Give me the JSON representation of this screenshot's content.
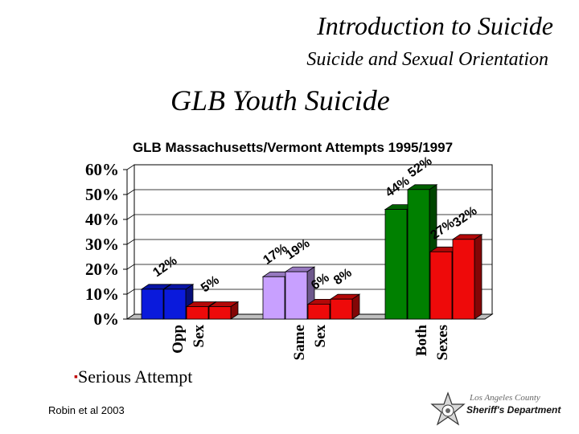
{
  "header": {
    "title": "Introduction to Suicide",
    "subtitle": "Suicide and Sexual Orientation"
  },
  "slide": {
    "title": "GLB Youth Suicide",
    "bullet": "Serious Attempt",
    "citation": "Robin et al 2003"
  },
  "logo": {
    "county": "Los Angeles County",
    "department": "Sheriff's Department",
    "icon": "sheriff-star-badge-icon"
  },
  "chart_data": {
    "type": "bar",
    "title": "GLB Massachusetts/Vermont Attempts 1995/1997",
    "ylim": [
      0,
      60
    ],
    "yticks": [
      "0%",
      "10%",
      "20%",
      "30%",
      "40%",
      "50%",
      "60%"
    ],
    "groups": [
      {
        "label_lines": [
          "Opp",
          "Sex"
        ],
        "bars": [
          {
            "value": 12,
            "color": "#0a1adc"
          },
          {
            "value": 12,
            "color": "#0a1adc"
          },
          {
            "value": 5,
            "color": "#ee0a0a"
          },
          {
            "value": 5,
            "color": "#ee0a0a"
          }
        ]
      },
      {
        "label_lines": [
          "Same",
          "Sex"
        ],
        "bars": [
          {
            "value": 17,
            "color": "#c8a0ff"
          },
          {
            "value": 19,
            "color": "#c8a0ff"
          },
          {
            "value": 6,
            "color": "#ee0a0a"
          },
          {
            "value": 8,
            "color": "#ee0a0a"
          }
        ]
      },
      {
        "label_lines": [
          "Both",
          "Sexes"
        ],
        "bars": [
          {
            "value": 44,
            "color": "#008000"
          },
          {
            "value": 52,
            "color": "#008000"
          },
          {
            "value": 27,
            "color": "#ee0a0a"
          },
          {
            "value": 32,
            "color": "#ee0a0a"
          }
        ]
      }
    ],
    "data_labels": [
      {
        "text": "12%",
        "value": 12,
        "group": 0,
        "pair": 0
      },
      {
        "text": "5%",
        "value": 5,
        "group": 0,
        "pair": 1
      },
      {
        "text": "17%",
        "value": 17,
        "group": 1,
        "bar": 0
      },
      {
        "text": "19%",
        "value": 19,
        "group": 1,
        "bar": 1
      },
      {
        "text": "6%",
        "value": 6,
        "group": 1,
        "bar": 2
      },
      {
        "text": "8%",
        "value": 8,
        "group": 1,
        "bar": 3
      },
      {
        "text": "44%",
        "value": 44,
        "group": 2,
        "bar": 0
      },
      {
        "text": "52%",
        "value": 52,
        "group": 2,
        "bar": 1
      },
      {
        "text": "27%",
        "value": 27,
        "group": 2,
        "bar": 2
      },
      {
        "text": "32%",
        "value": 32,
        "group": 2,
        "bar": 3
      }
    ],
    "grid": true,
    "legend": "none"
  }
}
